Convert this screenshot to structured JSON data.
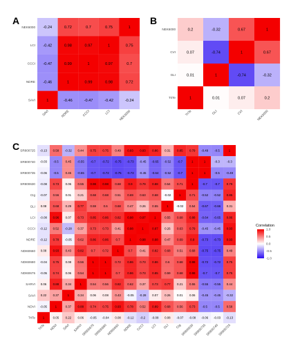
{
  "chart_data": [
    {
      "panel": "A",
      "type": "heatmap",
      "rows": [
        "NEK6000",
        "LCI",
        "CCCI",
        "NDRE",
        "SAVI"
      ],
      "cols": [
        "SAVI",
        "NDRE",
        "CCCI",
        "LCI",
        "NEK6000"
      ],
      "values": [
        [
          -0.24,
          0.72,
          0.7,
          0.75,
          1
        ],
        [
          -0.42,
          0.98,
          0.97,
          1,
          0.75
        ],
        [
          -0.47,
          0.99,
          1,
          0.97,
          0.7
        ],
        [
          -0.46,
          1,
          0.99,
          0.98,
          0.72
        ],
        [
          1,
          -0.46,
          -0.47,
          -0.42,
          -0.24
        ]
      ]
    },
    {
      "panel": "B",
      "type": "heatmap",
      "rows": [
        "NEK6000",
        "CVI",
        "GLI",
        "TriTe"
      ],
      "cols": [
        "TriTe",
        "GLI",
        "CVI",
        "NEK6000"
      ],
      "values": [
        [
          0.2,
          -0.32,
          0.67,
          1
        ],
        [
          0.07,
          -0.74,
          1,
          0.67
        ],
        [
          0.01,
          1,
          -0.74,
          -0.32
        ],
        [
          1,
          0.01,
          0.07,
          0.2
        ]
      ]
    },
    {
      "panel": "C",
      "type": "heatmap",
      "rows": [
        "SR800725",
        "SR800740",
        "SR800735",
        "SR800630",
        "CIg",
        "GLI",
        "LCI",
        "CCCI",
        "NDRE",
        "NDI60660",
        "NDI60680",
        "NDI60675",
        "SARVI",
        "SAVI",
        "NDVI",
        "TriTe"
      ],
      "cols": [
        "TriTe",
        "NDVI",
        "SAVI",
        "SARVI",
        "SR800675",
        "SR800680",
        "NDI60660",
        "NDRE",
        "CCCI",
        "LCI",
        "GLI",
        "CIg",
        "SR800630",
        "SR800735",
        "SR800740",
        "SR800725"
      ],
      "values": [
        [
          -0.13,
          0.58,
          -0.32,
          0.44,
          0.75,
          0.75,
          0.49,
          0.93,
          0.93,
          0.86,
          0.31,
          0.85,
          0.79,
          -0.49,
          -0.5,
          1
        ],
        [
          -0.03,
          -0.5,
          0.45,
          -0.55,
          -0.7,
          -0.72,
          -0.75,
          -0.73,
          -0.45,
          -0.65,
          -0.52,
          -0.7,
          1,
          1,
          -0.3,
          -0.3
        ],
        [
          -0.06,
          -0.5,
          0.45,
          -0.55,
          -0.7,
          -0.72,
          -0.75,
          -0.73,
          -0.45,
          -0.64,
          -0.52,
          -0.7,
          1,
          1,
          -0.5,
          -0.49
        ],
        [
          -0.08,
          0.73,
          0.06,
          0.55,
          0.98,
          0.98,
          0.68,
          0.9,
          0.79,
          0.88,
          0.54,
          0.71,
          1,
          -0.7,
          -0.7,
          0.79
        ],
        [
          -0.07,
          0.56,
          0.01,
          0.21,
          0.68,
          0.68,
          0.51,
          0.69,
          0.63,
          0.68,
          -0.02,
          1,
          0.71,
          -0.52,
          -0.52,
          0.85
        ],
        [
          0.08,
          0.68,
          0.29,
          0.77,
          0.59,
          0.6,
          0.68,
          0.47,
          0.26,
          0.55,
          1,
          -0.02,
          0.54,
          -0.67,
          -0.66,
          0.31
        ],
        [
          -0.08,
          0.96,
          0.07,
          0.73,
          0.85,
          0.86,
          0.82,
          0.98,
          0.97,
          1,
          0.55,
          0.68,
          0.88,
          -0.64,
          -0.65,
          0.86
        ],
        [
          -0.12,
          0.52,
          -0.28,
          0.37,
          0.73,
          0.73,
          0.41,
          0.98,
          1,
          0.97,
          0.26,
          0.63,
          0.79,
          -0.45,
          -0.45,
          0.93
        ],
        [
          -0.12,
          0.78,
          -0.05,
          0.62,
          0.86,
          0.86,
          0.7,
          1,
          0.98,
          0.98,
          0.47,
          0.69,
          0.9,
          -0.73,
          -0.73,
          0.93
        ],
        [
          0.08,
          0.93,
          0.43,
          0.82,
          0.7,
          0.72,
          1,
          0.7,
          0.41,
          0.82,
          0.68,
          0.51,
          0.68,
          -0.75,
          -0.75,
          0.49
        ],
        [
          -0.04,
          0.75,
          0.08,
          0.56,
          1,
          1,
          0.72,
          0.86,
          0.73,
          0.86,
          0.6,
          0.68,
          0.98,
          -0.72,
          -0.72,
          0.75
        ],
        [
          -0.05,
          0.74,
          0.06,
          0.54,
          1,
          1,
          0.7,
          0.86,
          0.73,
          0.85,
          0.59,
          0.68,
          0.98,
          -0.7,
          -0.7,
          0.75
        ],
        [
          0.06,
          0.88,
          0.34,
          1,
          0.54,
          0.56,
          0.82,
          0.62,
          0.37,
          0.73,
          0.77,
          0.21,
          0.55,
          -0.55,
          -0.55,
          0.44
        ],
        [
          0.22,
          0.37,
          1,
          0.34,
          0.06,
          0.08,
          0.43,
          -0.05,
          -0.28,
          0.07,
          0.26,
          0.01,
          0.06,
          -0.45,
          -0.45,
          -0.32
        ],
        [
          -0.05,
          1,
          0.37,
          0.88,
          0.74,
          0.75,
          0.93,
          0.78,
          0.52,
          0.89,
          0.68,
          0.56,
          0.73,
          -0.5,
          -0.5,
          0.58
        ],
        [
          1,
          0.05,
          0.22,
          0.06,
          -0.05,
          -0.04,
          0.08,
          -0.12,
          -0.2,
          -0.08,
          0.08,
          -0.07,
          -0.08,
          -0.06,
          -0.03,
          -0.13
        ]
      ]
    }
  ],
  "legend": {
    "title": "Correlation",
    "ticks": [
      "1.0",
      "0.5",
      "0.0",
      "-0.5",
      "-1.0"
    ],
    "colors": {
      "positive": "#f40000",
      "zero": "#ffffff",
      "negative": "#2a0cf2"
    }
  }
}
